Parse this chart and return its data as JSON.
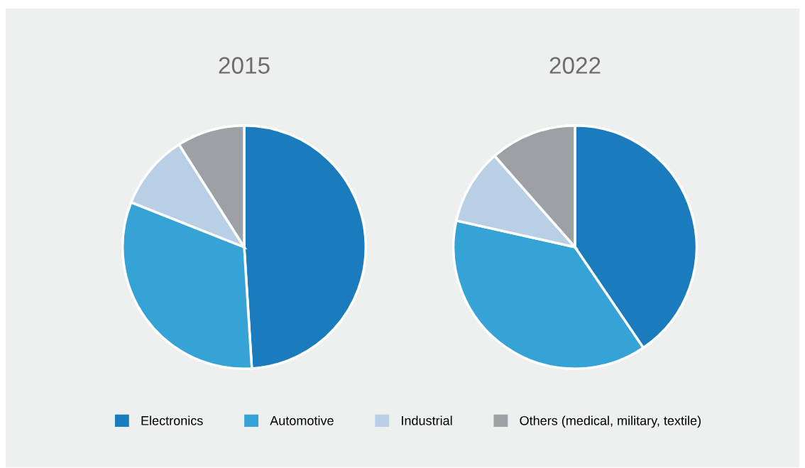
{
  "chart_data": [
    {
      "type": "pie",
      "title": "2015",
      "categories": [
        "Electronics",
        "Automotive",
        "Industrial",
        "Others (medical, military, textile)"
      ],
      "values": [
        49,
        32,
        10,
        9
      ],
      "colors": [
        "#1a7bbd",
        "#35a3d6",
        "#b8cfe5",
        "#9da1a6"
      ],
      "legend": "bottom"
    },
    {
      "type": "pie",
      "title": "2022",
      "categories": [
        null,
        null,
        null,
        null
      ],
      "values": [
        40.5,
        38,
        10,
        11.5
      ],
      "colors": [
        "#1a7bbd",
        "#35a3d6",
        "#b8cfe5",
        "#9da1a6"
      ]
    }
  ]
}
